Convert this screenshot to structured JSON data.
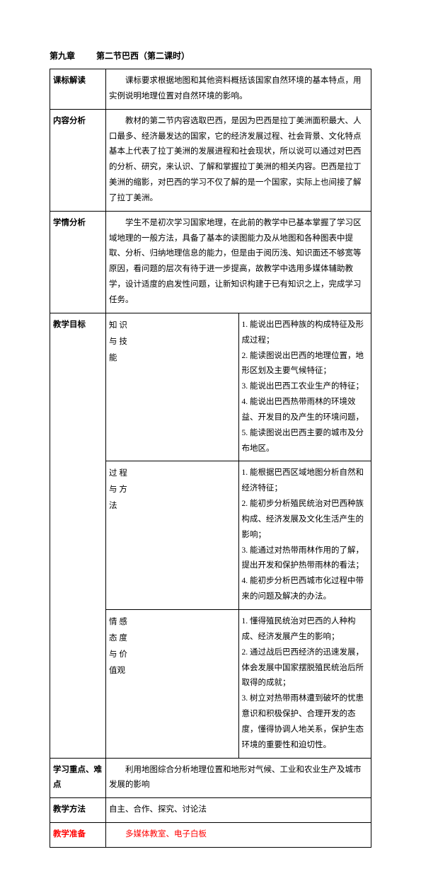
{
  "header": {
    "chapter": "第九章",
    "section": "第二节巴西（第二课时）"
  },
  "rows": {
    "kebiao_label": "课标解读",
    "kebiao_text": "课标要求根据地图和其他资料概括该国家自然环境的基本特点，用实例说明地理位置对自然环境的影响。",
    "neirong_label": "内容分析",
    "neirong_text": "教材的第二节内容选取巴西，是因为巴西是拉丁美洲面积最大、人口最多、经济最发达的国家，它的经济发展过程、社会背景、文化特点基本上代表了拉丁美洲的发展进程和社会现状，所以说可以通过对巴西的分析、研究，来认识、了解和掌握拉丁美洲的相关内容。巴西是拉丁美洲的缩影，对巴西的学习不仅了解的是一个国家，实际上也间接了解了拉丁美洲。",
    "xueqing_label": "学情分析",
    "xueqing_text": "学生不是初次学习国家地理，在此前的教学中已基本掌握了学习区域地理的一般方法，具备了基本的读图能力及从地图和各种图表中提取、分析、归纳地理信息的能力，但是由于阅历浅、知识面还不够宽等原因，看问题的层次有待于进一步提高，故教学中选用多媒体辅助教学，设计适度的启发性问题，让新知识构建于已有知识之上，完成学习任务。",
    "jiaoxue_label": "教学目标",
    "zhishi_label1": "知 识",
    "zhishi_label2": "与 技",
    "zhishi_label3": "能",
    "zhishi_1": "1. 能说出巴西种族的构成特征及形成过程；",
    "zhishi_2": "2. 能读图说出巴西的地理位置，地形区划及主要气候特征；",
    "zhishi_3": "3. 能说出巴西工农业生产的特征；",
    "zhishi_4": "4. 能说出巴西热带雨林的环境效益、开发目的及产生的环境问题，",
    "zhishi_5": "5. 能读图说出巴西主要的城市及分布地区。",
    "guocheng_label1": "过 程",
    "guocheng_label2": "与 方",
    "guocheng_label3": "法",
    "guocheng_1": "1. 能根据巴西区域地图分析自然和经济特征；",
    "guocheng_2": "2. 能初步分析殖民统治对巴西种族构成、经济发展及文化生活产生的影响；",
    "guocheng_3": "3. 能通过对热带雨林作用的了解，提出开发和保护热带雨林的看法；",
    "guocheng_4": "4. 能初步分析巴西城市化过程中带来的问题及解决的办法。",
    "qinggan_label1": "情 感",
    "qinggan_label2": "态 度",
    "qinggan_label3": "与 价",
    "qinggan_label4": "值观",
    "qinggan_1": "1. 懂得殖民统治对巴西的人种构成、经济发展产生的影响；",
    "qinggan_2": "2. 通过战后巴西经济的迅速发展，体会发展中国家摆脱殖民统治后所取得的成就；",
    "qinggan_3": "3. 树立对热带雨林遭到破坏的忧患意识和积极保护、合理开发的态度，懂得协调人地关系，保护生态环境的重要性和迫切性。",
    "zhongdian_label": "学习重点、难点",
    "zhongdian_text": "利用地图综合分析地理位置和地形对气候、工业和农业生产及城市发展的影响",
    "fangfa_label": "教学方法",
    "fangfa_text": "自主、合作、探究、讨论法",
    "zhunbei_label": "教学准备",
    "zhunbei_text": "多媒体教室、电子白板"
  }
}
